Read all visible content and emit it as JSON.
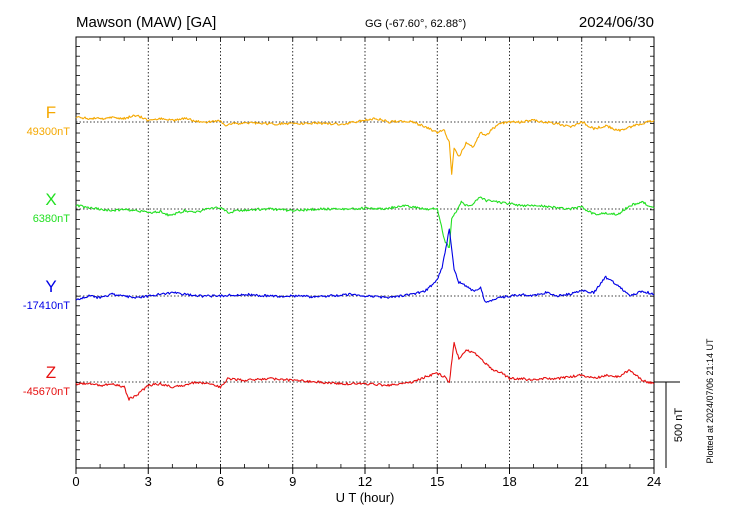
{
  "header": {
    "station": "Mawson (MAW)  [GA]",
    "coords": "GG (-67.60°,  62.88°)",
    "date": "2024/06/30"
  },
  "footer": {
    "plotted": "Plotted at 2024/07/06 21:14 UT"
  },
  "scale_bar": {
    "label": "500 nT",
    "value": 500
  },
  "chart_data": {
    "type": "line",
    "xlabel": "U T (hour)",
    "xlim": [
      0,
      24
    ],
    "xticks": [
      0,
      3,
      6,
      9,
      12,
      15,
      18,
      21,
      24
    ],
    "xticklabels": [
      "0",
      "3",
      "6",
      "9",
      "12",
      "15",
      "18",
      "21",
      "24"
    ],
    "grid": true,
    "units": "nT",
    "series": [
      {
        "name": "F",
        "baseline_label": "49300nT",
        "baseline": 49300,
        "color": "#f5a800",
        "x": [
          0,
          0.5,
          1,
          1.5,
          2,
          2.5,
          3,
          3.5,
          4,
          4.5,
          5,
          5.5,
          6,
          6.2,
          6.5,
          7,
          8,
          9,
          10,
          11,
          12,
          12.5,
          13,
          13.5,
          14,
          14.5,
          15,
          15.3,
          15.5,
          15.6,
          15.7,
          15.9,
          16.2,
          16.5,
          16.8,
          17,
          17.3,
          17.6,
          18,
          18.5,
          19,
          19.5,
          20,
          20.5,
          21,
          21.5,
          22,
          22.5,
          23,
          23.5,
          24
        ],
        "y": [
          49330,
          49320,
          49320,
          49325,
          49320,
          49340,
          49310,
          49320,
          49310,
          49320,
          49305,
          49300,
          49305,
          49280,
          49290,
          49295,
          49290,
          49290,
          49295,
          49285,
          49310,
          49320,
          49300,
          49305,
          49300,
          49270,
          49240,
          49250,
          49180,
          49000,
          49150,
          49100,
          49180,
          49150,
          49240,
          49220,
          49260,
          49290,
          49300,
          49300,
          49310,
          49300,
          49290,
          49270,
          49300,
          49260,
          49280,
          49250,
          49270,
          49290,
          49310
        ]
      },
      {
        "name": "X",
        "baseline_label": "6380nT",
        "baseline": 6380,
        "color": "#22e022",
        "x": [
          0,
          0.5,
          1,
          1.5,
          2,
          2.5,
          3,
          3.5,
          3.9,
          4.5,
          5,
          5.5,
          6,
          6.3,
          7,
          8,
          9,
          10,
          11,
          12,
          12.5,
          13,
          13.5,
          14,
          14.5,
          15,
          15.3,
          15.5,
          15.6,
          15.8,
          16,
          16.2,
          16.5,
          16.8,
          17,
          17.5,
          18,
          18.5,
          19,
          19.5,
          20,
          20.5,
          21,
          21.5,
          22,
          22.5,
          23,
          23.5,
          24
        ],
        "y": [
          6400,
          6390,
          6380,
          6370,
          6380,
          6370,
          6360,
          6365,
          6340,
          6370,
          6360,
          6380,
          6390,
          6360,
          6375,
          6380,
          6370,
          6380,
          6380,
          6385,
          6380,
          6385,
          6400,
          6390,
          6380,
          6380,
          6200,
          6150,
          6330,
          6370,
          6420,
          6400,
          6410,
          6450,
          6430,
          6420,
          6410,
          6400,
          6400,
          6395,
          6390,
          6380,
          6390,
          6350,
          6355,
          6350,
          6400,
          6420,
          6385
        ]
      },
      {
        "name": "Y",
        "baseline_label": "-17410nT",
        "baseline": -17410,
        "color": "#0000e6",
        "x": [
          0,
          0.5,
          1,
          1.5,
          2,
          2.5,
          3,
          4,
          4.5,
          5,
          6,
          7,
          8,
          9,
          10,
          11,
          11.5,
          12,
          13,
          13.5,
          14,
          14.5,
          15,
          15.2,
          15.4,
          15.5,
          15.6,
          15.7,
          15.9,
          16.2,
          16.5,
          16.8,
          17,
          17.3,
          17.6,
          18,
          18.5,
          19,
          19.5,
          20,
          20.5,
          21,
          21.5,
          22,
          22.5,
          23,
          23.5,
          24
        ],
        "y": [
          -17430,
          -17410,
          -17420,
          -17400,
          -17410,
          -17420,
          -17410,
          -17390,
          -17400,
          -17410,
          -17410,
          -17400,
          -17410,
          -17410,
          -17415,
          -17405,
          -17400,
          -17410,
          -17420,
          -17410,
          -17400,
          -17380,
          -17320,
          -17240,
          -17100,
          -17020,
          -17130,
          -17260,
          -17330,
          -17350,
          -17380,
          -17360,
          -17450,
          -17430,
          -17420,
          -17410,
          -17400,
          -17410,
          -17390,
          -17410,
          -17400,
          -17380,
          -17390,
          -17300,
          -17350,
          -17410,
          -17380,
          -17400
        ]
      },
      {
        "name": "Z",
        "baseline_label": "-45670nT",
        "baseline": -45670,
        "color": "#e61010",
        "x": [
          0,
          0.5,
          1,
          1.5,
          2,
          2.2,
          2.5,
          3,
          3.5,
          4,
          4.5,
          5,
          5.5,
          6,
          6.3,
          7,
          8,
          9,
          10,
          11,
          12,
          13,
          14,
          14.5,
          15,
          15.3,
          15.5,
          15.7,
          15.9,
          16.2,
          16.5,
          16.8,
          17,
          17.3,
          17.6,
          18,
          18.5,
          19,
          19.5,
          20,
          20.5,
          21,
          21.5,
          22,
          22.5,
          23,
          23.5,
          24
        ],
        "y": [
          -45680,
          -45680,
          -45690,
          -45680,
          -45700,
          -45770,
          -45750,
          -45690,
          -45680,
          -45700,
          -45690,
          -45670,
          -45680,
          -45700,
          -45650,
          -45660,
          -45650,
          -45660,
          -45670,
          -45680,
          -45680,
          -45690,
          -45670,
          -45640,
          -45620,
          -45640,
          -45670,
          -45440,
          -45540,
          -45480,
          -45500,
          -45530,
          -45560,
          -45600,
          -45610,
          -45650,
          -45650,
          -45660,
          -45650,
          -45650,
          -45640,
          -45630,
          -45650,
          -45630,
          -45640,
          -45600,
          -45660,
          -45680
        ]
      }
    ]
  }
}
